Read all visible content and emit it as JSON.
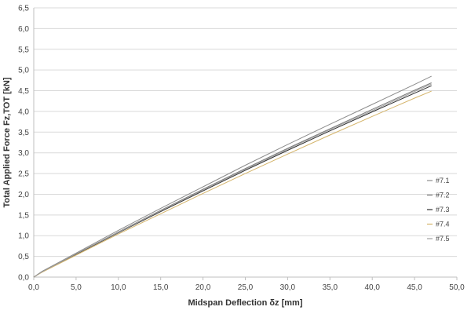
{
  "chart_data": {
    "type": "line",
    "xlabel": "Midspan Deflection δz [mm]",
    "ylabel": "Total Applied Force Fz,TOT [kN]",
    "xlim": [
      0,
      50
    ],
    "ylim": [
      0,
      6.5
    ],
    "x_ticks": [
      "0,0",
      "5,0",
      "10,0",
      "15,0",
      "20,0",
      "25,0",
      "30,0",
      "35,0",
      "40,0",
      "45,0",
      "50,0"
    ],
    "y_ticks": [
      "0,0",
      "0,5",
      "1,0",
      "1,5",
      "2,0",
      "2,5",
      "3,0",
      "3,5",
      "4,0",
      "4,5",
      "5,0",
      "5,5",
      "6,0",
      "6,5"
    ],
    "grid": "horizontal",
    "legend_position": "right",
    "series": [
      {
        "name": "#7.1",
        "color": "#8c8c8c",
        "x": [
          0,
          1,
          5,
          10,
          15,
          20,
          25,
          30,
          35,
          40,
          45,
          47
        ],
        "y": [
          0,
          0.14,
          0.58,
          1.13,
          1.66,
          2.18,
          2.7,
          3.2,
          3.69,
          4.17,
          4.65,
          4.85
        ]
      },
      {
        "name": "#7.2",
        "color": "#7a7a7a",
        "x": [
          0,
          1,
          5,
          10,
          15,
          20,
          25,
          30,
          35,
          40,
          45,
          47
        ],
        "y": [
          0,
          0.13,
          0.56,
          1.09,
          1.61,
          2.12,
          2.62,
          3.11,
          3.58,
          4.05,
          4.51,
          4.69
        ]
      },
      {
        "name": "#7.3",
        "color": "#2e2e2e",
        "x": [
          0,
          1,
          5,
          10,
          15,
          20,
          25,
          30,
          35,
          40,
          45,
          47
        ],
        "y": [
          0,
          0.13,
          0.55,
          1.07,
          1.58,
          2.08,
          2.58,
          3.06,
          3.53,
          3.99,
          4.44,
          4.62
        ]
      },
      {
        "name": "#7.4",
        "color": "#d4b46a",
        "x": [
          0,
          1,
          5,
          10,
          15,
          20,
          25,
          30,
          35,
          40,
          45,
          47
        ],
        "y": [
          0,
          0.12,
          0.53,
          1.04,
          1.53,
          2.02,
          2.5,
          2.97,
          3.43,
          3.88,
          4.32,
          4.49
        ]
      },
      {
        "name": "#7.5",
        "color": "#9e9e9e",
        "x": [
          0,
          1,
          5,
          10,
          15,
          20,
          25,
          30,
          35,
          40,
          45,
          47
        ],
        "y": [
          0,
          0.13,
          0.56,
          1.08,
          1.6,
          2.1,
          2.6,
          3.09,
          3.56,
          4.02,
          4.48,
          4.66
        ]
      }
    ]
  }
}
